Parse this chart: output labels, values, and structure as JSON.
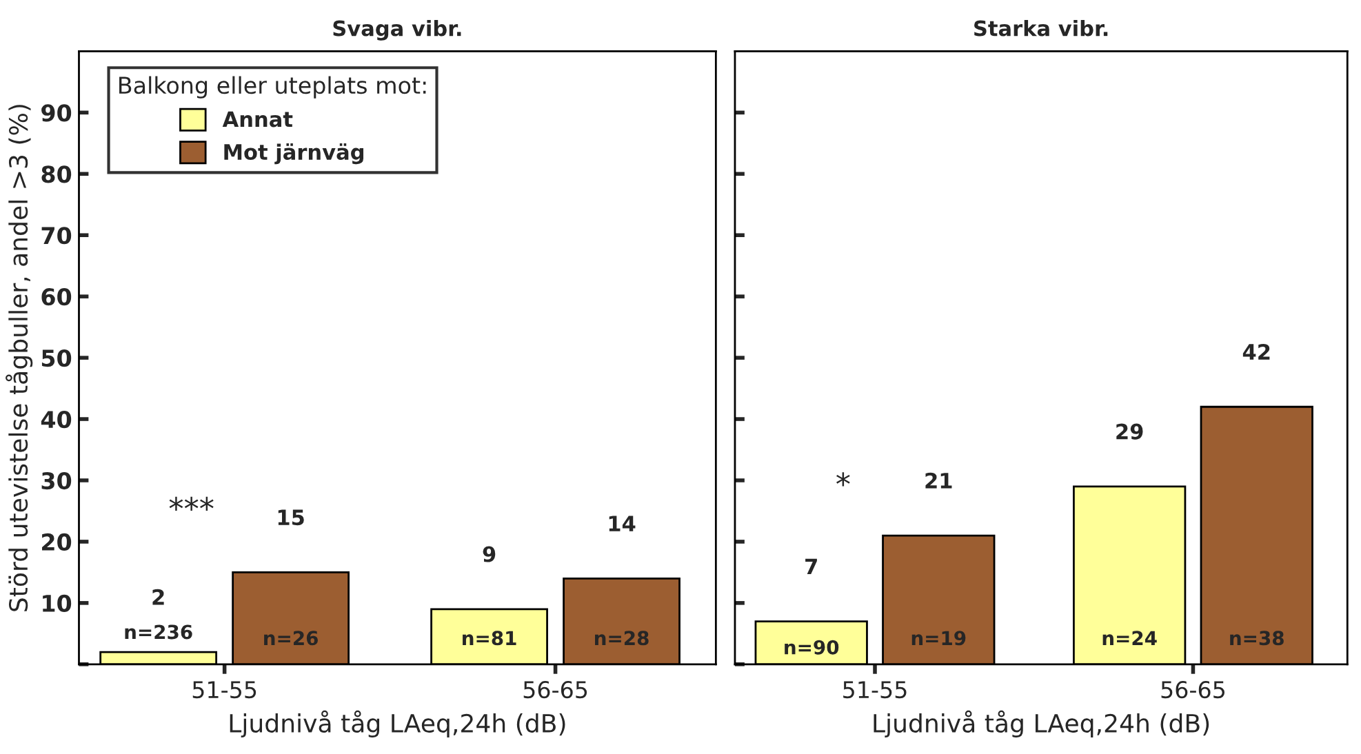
{
  "chart_data": [
    {
      "type": "bar",
      "title": "Svaga vibr.",
      "xlabel": "Ljudnivå tåg LAeq,24h (dB)",
      "ylabel": "Störd utevistelse tågbuller, andel >3 (%)",
      "legend_title": "Balkong eller uteplats mot:",
      "legend": "top left",
      "categories": [
        "51-55",
        "56-65"
      ],
      "series": [
        {
          "name": "Annat",
          "color": "#ffff99",
          "values": [
            2,
            9
          ]
        },
        {
          "name": "Mot järnväg",
          "color": "#9c5e31",
          "values": [
            15,
            14
          ]
        }
      ],
      "data_labels": true,
      "ylim": [
        0,
        100
      ],
      "yticks": [
        {
          "value": 0,
          "label": null
        },
        10,
        20,
        30,
        40,
        50,
        60,
        70,
        80,
        90
      ],
      "grid": false,
      "annotations": [
        "n=236",
        "n=81",
        "n=26",
        "n=28",
        "***"
      ]
    },
    {
      "type": "bar",
      "title": "Starka vibr.",
      "xlabel": "Ljudnivå tåg LAeq,24h (dB)",
      "categories": [
        "51-55",
        "56-65"
      ],
      "series": [
        {
          "color": "#ffff99",
          "values": [
            7,
            29
          ]
        },
        {
          "color": "#9c5e31",
          "values": [
            21,
            42
          ]
        }
      ],
      "data_labels": true,
      "ylim": [
        0,
        100
      ],
      "yticks": [
        {
          "value": 0,
          "label": null
        },
        10,
        20,
        30,
        40,
        50,
        60,
        70,
        80,
        90
      ],
      "grid": false,
      "tick_labels": "x",
      "annotations": [
        "n=90",
        "n=24",
        "n=19",
        "n=38",
        "*"
      ]
    }
  ]
}
